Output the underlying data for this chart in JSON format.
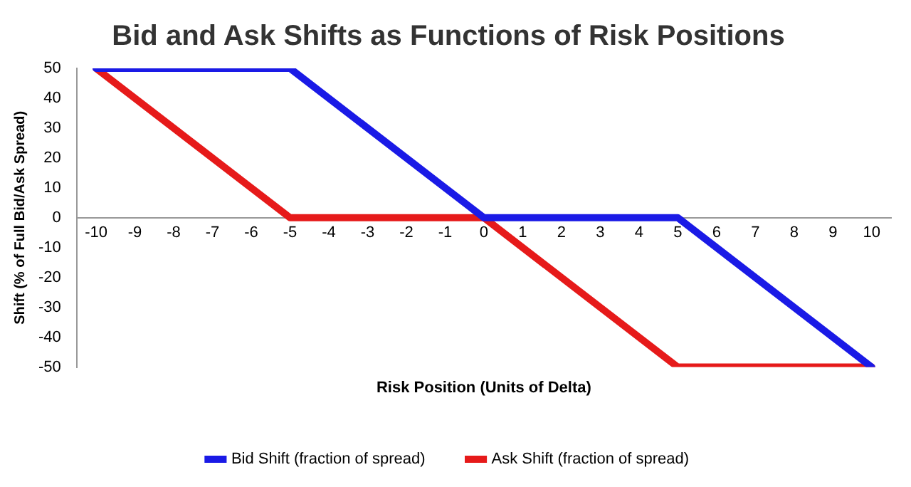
{
  "chart_data": {
    "type": "line",
    "title": "Bid and Ask Shifts as Functions of Risk Positions",
    "xlabel": "Risk Position (Units of Delta)",
    "ylabel": "Shift (% of Full Bid/Ask Spread)",
    "xlim": [
      -10.5,
      10.5
    ],
    "xticks": [
      -10,
      -9,
      -8,
      -7,
      -6,
      -5,
      -4,
      -3,
      -2,
      -1,
      0,
      1,
      2,
      3,
      4,
      5,
      6,
      7,
      8,
      9,
      10
    ],
    "ylim": [
      -50,
      50
    ],
    "yticks": [
      -50,
      -40,
      -30,
      -20,
      -10,
      0,
      10,
      20,
      30,
      40,
      50
    ],
    "grid": false,
    "legend": "bottom",
    "marker": "none",
    "line_style": "solid",
    "series": [
      {
        "name": "Bid Shift (fraction of spread)",
        "color": "#1a1ae6",
        "x": [
          -10,
          -5,
          0,
          5,
          10
        ],
        "values": [
          50,
          50,
          0,
          0,
          -50
        ]
      },
      {
        "name": "Ask Shift (fraction of spread)",
        "color": "#e61a1a",
        "x": [
          -10,
          -5,
          0,
          5,
          10
        ],
        "values": [
          50,
          0,
          0,
          -50,
          -50
        ]
      }
    ]
  }
}
